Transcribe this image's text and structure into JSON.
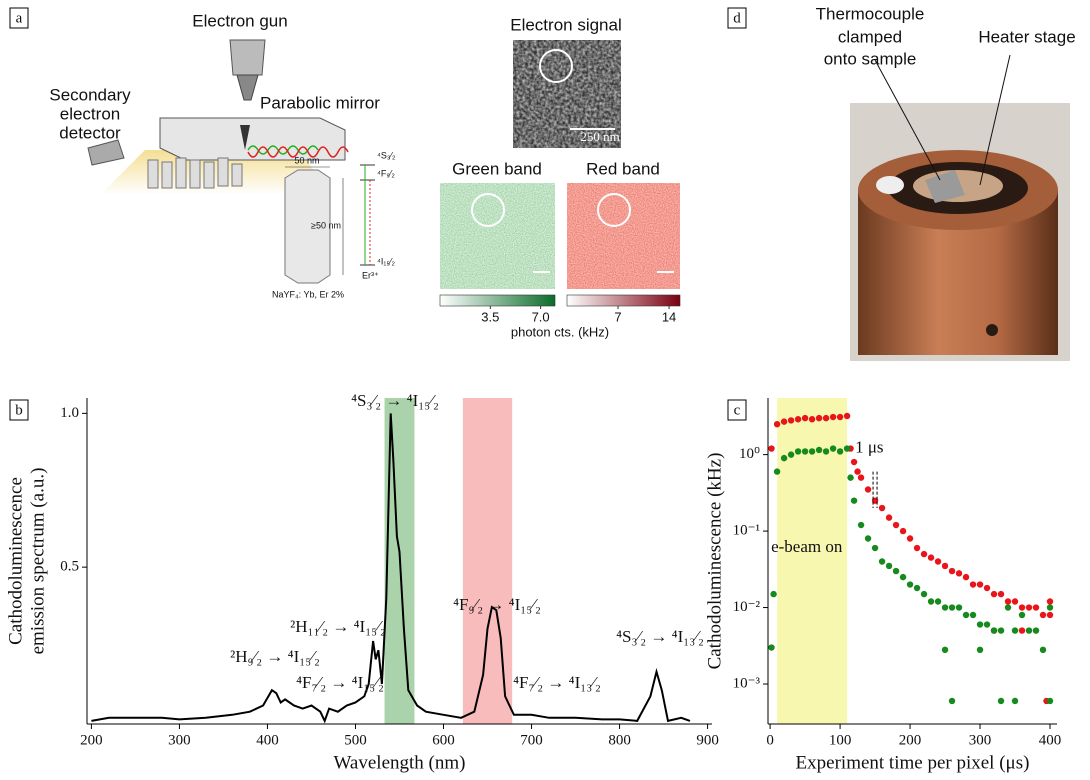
{
  "figure": {
    "panel_labels": [
      "a",
      "b",
      "c",
      "d"
    ],
    "panel_a": {
      "electron_gun": "Electron gun",
      "parabolic_mirror": "Parabolic mirror",
      "detector": [
        "Secondary",
        "electron",
        "detector"
      ],
      "width_label": "50 nm",
      "height_label": "≥50 nm",
      "crystal_label": "NaYF₄: Yb, Er 2%",
      "levels": [
        "⁴S₃⁄₂",
        "⁴F₉⁄₂",
        "⁴I₁₅⁄₂"
      ],
      "ion": "Er³⁺",
      "electron_signal": "Electron signal",
      "scale_bar": "250 nm",
      "green_band": "Green band",
      "red_band": "Red band",
      "colorbar_label": "photon cts. (kHz)",
      "colorbars": [
        {
          "lim": [
            0,
            8
          ],
          "ticks": [
            3.5,
            {
              "value": 7,
              "label": "7.0"
            }
          ],
          "colors": [
            "#ffffff",
            "#0b6b2a"
          ]
        },
        {
          "lim": [
            0,
            15.5
          ],
          "ticks": [
            7,
            14
          ],
          "colors": [
            "#ffffff",
            "#7a0010"
          ]
        }
      ]
    },
    "panel_d": {
      "thermocouple": [
        "Thermocouple",
        "clamped",
        "onto sample"
      ],
      "heater": "Heater stage"
    }
  },
  "chart_data": [
    {
      "type": "line",
      "xlabel": "Wavelength (nm)",
      "ylabel": [
        "Cathodoluminescence",
        "emission spectrum (a.u.)"
      ],
      "xlim": [
        195,
        905
      ],
      "ylim": [
        -0.01,
        1.05
      ],
      "xticks": [
        200,
        300,
        400,
        500,
        600,
        700,
        800,
        900
      ],
      "yticks": [
        0.5,
        {
          "value": 1,
          "label": "1.0"
        }
      ],
      "color": "#000000",
      "bands": [
        {
          "range": [
            533,
            567
          ],
          "color": "#8fc48f"
        },
        {
          "range": [
            622,
            678
          ],
          "color": "#f6a5a5"
        }
      ],
      "annotations": [
        "⁴S₃⁄₂ → ⁴I₁₅⁄₂",
        "⁴F₉⁄₂ → ⁴I₁₅⁄₂",
        "²H₁₁⁄₂ → ⁴I₁₅⁄₂",
        "²H₉⁄₂ → ⁴I₁₅⁄₂",
        "⁴F₇⁄₂ → ⁴I₁₅⁄₂",
        "⁴F₇⁄₂ → ⁴I₁₃⁄₂",
        "⁴S₃⁄₂ → ⁴I₁₃⁄₂"
      ],
      "x": [
        200,
        220,
        250,
        280,
        300,
        330,
        360,
        380,
        395,
        405,
        410,
        415,
        420,
        430,
        440,
        450,
        460,
        465,
        470,
        480,
        490,
        500,
        510,
        515,
        520,
        523,
        526,
        530,
        535,
        540,
        543,
        547,
        550,
        555,
        560,
        570,
        580,
        600,
        620,
        635,
        645,
        650,
        655,
        660,
        665,
        670,
        680,
        700,
        720,
        750,
        780,
        800,
        820,
        835,
        842,
        848,
        855,
        870,
        880
      ],
      "values": [
        0.0,
        0.01,
        0.01,
        0.01,
        0.005,
        0.01,
        0.02,
        0.03,
        0.05,
        0.1,
        0.09,
        0.06,
        0.07,
        0.05,
        0.04,
        0.05,
        0.03,
        0.0,
        0.04,
        0.03,
        0.05,
        0.06,
        0.08,
        0.12,
        0.26,
        0.2,
        0.23,
        0.12,
        0.4,
        1.0,
        0.85,
        0.6,
        0.55,
        0.3,
        0.1,
        0.05,
        0.03,
        0.02,
        0.01,
        0.03,
        0.15,
        0.3,
        0.37,
        0.36,
        0.27,
        0.08,
        0.02,
        0.02,
        0.01,
        0.01,
        0.005,
        0.005,
        0.0,
        0.08,
        0.16,
        0.1,
        0.0,
        0.01,
        0.0
      ]
    },
    {
      "type": "scatter",
      "xlabel": "Experiment time per pixel (μs)",
      "ylabel": "Cathodoluminescence (kHz)",
      "log_y": true,
      "xlim": [
        -3,
        410
      ],
      "ylim": [
        0.0003,
        5.5
      ],
      "xticks": [
        0,
        100,
        200,
        300,
        400
      ],
      "yticks": [
        {
          "value": 0.001,
          "label": "10⁻³"
        },
        {
          "value": 0.01,
          "label": "10⁻²"
        },
        {
          "value": 0.1,
          "label": "10⁻¹"
        },
        {
          "value": 1,
          "label": "10⁰"
        }
      ],
      "highlight": {
        "range": [
          10,
          110
        ],
        "color": "#f7f7b0",
        "label": "e-beam on"
      },
      "marker_annotation": {
        "x": 150,
        "label": "1 μs"
      },
      "series": [
        {
          "color": "#e8161b",
          "x": [
            2,
            10,
            20,
            30,
            40,
            50,
            60,
            70,
            80,
            90,
            100,
            110,
            115,
            120,
            125,
            130,
            140,
            150,
            160,
            170,
            180,
            190,
            200,
            210,
            220,
            230,
            240,
            250,
            260,
            270,
            280,
            290,
            300,
            310,
            320,
            330,
            340,
            350,
            360,
            370,
            380,
            390,
            400,
            320,
            360,
            395,
            400
          ],
          "values": [
            1.2,
            2.5,
            2.7,
            2.8,
            2.9,
            3.0,
            2.9,
            3.0,
            3.0,
            3.1,
            3.1,
            3.2,
            1.2,
            0.8,
            0.6,
            0.5,
            0.35,
            0.25,
            0.2,
            0.15,
            0.12,
            0.1,
            0.08,
            0.06,
            0.05,
            0.045,
            0.04,
            0.035,
            0.03,
            0.028,
            0.025,
            0.02,
            0.02,
            0.018,
            0.015,
            0.015,
            0.012,
            0.012,
            0.01,
            0.01,
            0.01,
            0.008,
            0.008,
            0.005,
            0.005,
            0.0006,
            0.012
          ]
        },
        {
          "color": "#178a1e",
          "x": [
            2,
            5,
            10,
            20,
            30,
            40,
            50,
            60,
            70,
            80,
            90,
            100,
            110,
            115,
            120,
            130,
            140,
            150,
            160,
            170,
            180,
            190,
            200,
            210,
            220,
            230,
            240,
            250,
            260,
            270,
            280,
            290,
            300,
            310,
            320,
            330,
            340,
            350,
            360,
            370,
            380,
            390,
            400,
            250,
            300,
            350,
            400,
            260,
            330
          ],
          "values": [
            0.003,
            0.015,
            0.6,
            0.9,
            1.0,
            1.1,
            1.1,
            1.1,
            1.15,
            1.1,
            1.2,
            1.1,
            1.2,
            0.5,
            0.25,
            0.12,
            0.08,
            0.06,
            0.04,
            0.035,
            0.03,
            0.025,
            0.02,
            0.018,
            0.015,
            0.012,
            0.012,
            0.01,
            0.01,
            0.01,
            0.008,
            0.008,
            0.006,
            0.006,
            0.005,
            0.005,
            0.01,
            0.005,
            0.008,
            0.005,
            0.005,
            0.0028,
            0.01,
            0.0028,
            0.0028,
            0.0006,
            0.0006,
            0.0006,
            0.0006
          ]
        }
      ]
    }
  ]
}
